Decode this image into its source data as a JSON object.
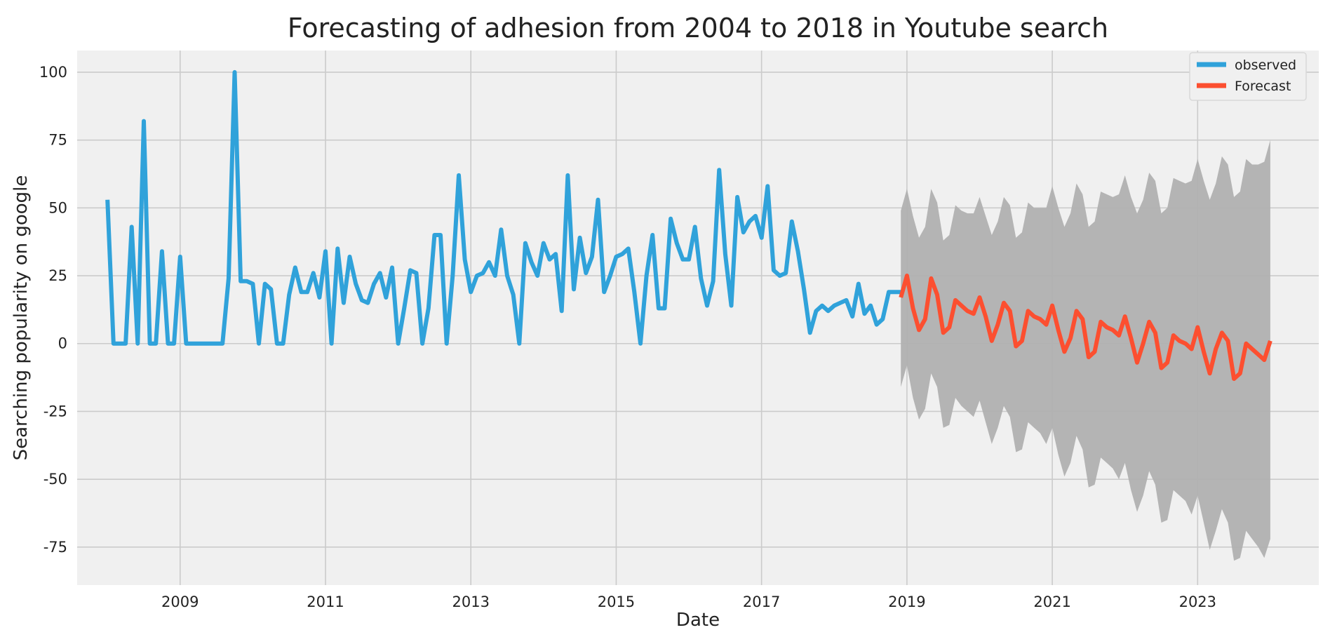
{
  "chart_data": {
    "type": "line",
    "title": "Forecasting of adhesion from 2004 to 2018 in Youtube search",
    "xlabel": "Date",
    "ylabel": "Searching popularity on google",
    "xlim": [
      "2007-08-01",
      "2024-09-01"
    ],
    "ylim": [
      -89,
      108
    ],
    "x_ticks": [
      "2009",
      "2011",
      "2013",
      "2015",
      "2017",
      "2019",
      "2021",
      "2023"
    ],
    "y_ticks": [
      100,
      75,
      50,
      25,
      0,
      -25,
      -50,
      -75
    ],
    "grid": true,
    "legend": "top-right",
    "colors": {
      "background": "#f0f0f0",
      "grid": "#cbcbcb",
      "observed": "#30a2da",
      "forecast": "#fc4f30",
      "confidence": "#b0b0b0"
    },
    "series": [
      {
        "name": "observed",
        "x": [
          "2008-01",
          "2008-02",
          "2008-03",
          "2008-04",
          "2008-05",
          "2008-06",
          "2008-07",
          "2008-08",
          "2008-09",
          "2008-10",
          "2008-11",
          "2008-12",
          "2009-01",
          "2009-02",
          "2009-03",
          "2009-04",
          "2009-05",
          "2009-06",
          "2009-07",
          "2009-08",
          "2009-09",
          "2009-10",
          "2009-11",
          "2009-12",
          "2010-01",
          "2010-02",
          "2010-03",
          "2010-04",
          "2010-05",
          "2010-06",
          "2010-07",
          "2010-08",
          "2010-09",
          "2010-10",
          "2010-11",
          "2010-12",
          "2011-01",
          "2011-02",
          "2011-03",
          "2011-04",
          "2011-05",
          "2011-06",
          "2011-07",
          "2011-08",
          "2011-09",
          "2011-10",
          "2011-11",
          "2011-12",
          "2012-01",
          "2012-02",
          "2012-03",
          "2012-04",
          "2012-05",
          "2012-06",
          "2012-07",
          "2012-08",
          "2012-09",
          "2012-10",
          "2012-11",
          "2012-12",
          "2013-01",
          "2013-02",
          "2013-03",
          "2013-04",
          "2013-05",
          "2013-06",
          "2013-07",
          "2013-08",
          "2013-09",
          "2013-10",
          "2013-11",
          "2013-12",
          "2014-01",
          "2014-02",
          "2014-03",
          "2014-04",
          "2014-05",
          "2014-06",
          "2014-07",
          "2014-08",
          "2014-09",
          "2014-10",
          "2014-11",
          "2014-12",
          "2015-01",
          "2015-02",
          "2015-03",
          "2015-04",
          "2015-05",
          "2015-06",
          "2015-07",
          "2015-08",
          "2015-09",
          "2015-10",
          "2015-11",
          "2015-12",
          "2016-01",
          "2016-02",
          "2016-03",
          "2016-04",
          "2016-05",
          "2016-06",
          "2016-07",
          "2016-08",
          "2016-09",
          "2016-10",
          "2016-11",
          "2016-12",
          "2017-01",
          "2017-02",
          "2017-03",
          "2017-04",
          "2017-05",
          "2017-06",
          "2017-07",
          "2017-08",
          "2017-09",
          "2017-10",
          "2017-11",
          "2017-12",
          "2018-01",
          "2018-02",
          "2018-03",
          "2018-04",
          "2018-05",
          "2018-06",
          "2018-07",
          "2018-08",
          "2018-09",
          "2018-10",
          "2018-11",
          "2018-12"
        ],
        "values": [
          53,
          0,
          0,
          0,
          43,
          0,
          82,
          0,
          0,
          34,
          0,
          0,
          32,
          0,
          0,
          0,
          0,
          0,
          0,
          0,
          24,
          100,
          23,
          23,
          22,
          0,
          22,
          20,
          0,
          0,
          18,
          28,
          19,
          19,
          26,
          17,
          34,
          0,
          35,
          15,
          32,
          22,
          16,
          15,
          22,
          26,
          17,
          28,
          0,
          13,
          27,
          26,
          0,
          13,
          40,
          40,
          0,
          25,
          62,
          31,
          19,
          25,
          26,
          30,
          25,
          42,
          25,
          18,
          0,
          37,
          30,
          25,
          37,
          31,
          33,
          12,
          62,
          20,
          39,
          26,
          32,
          53,
          19,
          25,
          32,
          33,
          35,
          19,
          0,
          25,
          40,
          13,
          13,
          46,
          37,
          31,
          31,
          43,
          24,
          14,
          23,
          64,
          33,
          14,
          54,
          41,
          45,
          47,
          39,
          58,
          27,
          25,
          26,
          45,
          34,
          20,
          4,
          12,
          14,
          12,
          14,
          15,
          16,
          10,
          22,
          11,
          14,
          7,
          9,
          19,
          19,
          19
        ]
      },
      {
        "name": "Forecast",
        "x": [
          "2018-12",
          "2019-01",
          "2019-02",
          "2019-03",
          "2019-04",
          "2019-05",
          "2019-06",
          "2019-07",
          "2019-08",
          "2019-09",
          "2019-10",
          "2019-11",
          "2019-12",
          "2020-01",
          "2020-02",
          "2020-03",
          "2020-04",
          "2020-05",
          "2020-06",
          "2020-07",
          "2020-08",
          "2020-09",
          "2020-10",
          "2020-11",
          "2020-12",
          "2021-01",
          "2021-02",
          "2021-03",
          "2021-04",
          "2021-05",
          "2021-06",
          "2021-07",
          "2021-08",
          "2021-09",
          "2021-10",
          "2021-11",
          "2021-12",
          "2022-01",
          "2022-02",
          "2022-03",
          "2022-04",
          "2022-05",
          "2022-06",
          "2022-07",
          "2022-08",
          "2022-09",
          "2022-10",
          "2022-11",
          "2022-12",
          "2023-01",
          "2023-02",
          "2023-03",
          "2023-04",
          "2023-05",
          "2023-06",
          "2023-07",
          "2023-08",
          "2023-09",
          "2023-10",
          "2023-11",
          "2023-12",
          "2024-01"
        ],
        "values": [
          17,
          25,
          13,
          5,
          9,
          24,
          18,
          4,
          6,
          16,
          14,
          12,
          11,
          17,
          10,
          1,
          7,
          15,
          12,
          -1,
          1,
          12,
          10,
          9,
          7,
          14,
          5,
          -3,
          2,
          12,
          9,
          -5,
          -3,
          8,
          6,
          5,
          3,
          10,
          2,
          -7,
          0,
          8,
          4,
          -9,
          -7,
          3,
          1,
          0,
          -2,
          6,
          -3,
          -11,
          -2,
          4,
          1,
          -13,
          -11,
          0,
          -2,
          -4,
          -6,
          1
        ],
        "lower": [
          -16,
          -8,
          -20,
          -28,
          -24,
          -11,
          -16,
          -31,
          -30,
          -20,
          -23,
          -25,
          -27,
          -21,
          -29,
          -37,
          -31,
          -23,
          -27,
          -40,
          -39,
          -29,
          -31,
          -33,
          -37,
          -31,
          -41,
          -49,
          -44,
          -34,
          -39,
          -53,
          -52,
          -42,
          -44,
          -46,
          -50,
          -44,
          -54,
          -62,
          -56,
          -47,
          -52,
          -66,
          -65,
          -54,
          -56,
          -58,
          -63,
          -56,
          -66,
          -76,
          -69,
          -61,
          -66,
          -80,
          -79,
          -69,
          -72,
          -75,
          -79,
          -72
        ],
        "upper": [
          49,
          57,
          47,
          39,
          43,
          57,
          52,
          38,
          40,
          51,
          49,
          48,
          48,
          54,
          47,
          40,
          45,
          54,
          51,
          39,
          41,
          52,
          50,
          50,
          50,
          58,
          50,
          43,
          48,
          59,
          55,
          43,
          45,
          56,
          55,
          54,
          55,
          62,
          54,
          48,
          53,
          63,
          60,
          48,
          50,
          61,
          60,
          59,
          60,
          68,
          60,
          53,
          59,
          69,
          66,
          54,
          56,
          68,
          66,
          66,
          67,
          75
        ]
      }
    ]
  }
}
